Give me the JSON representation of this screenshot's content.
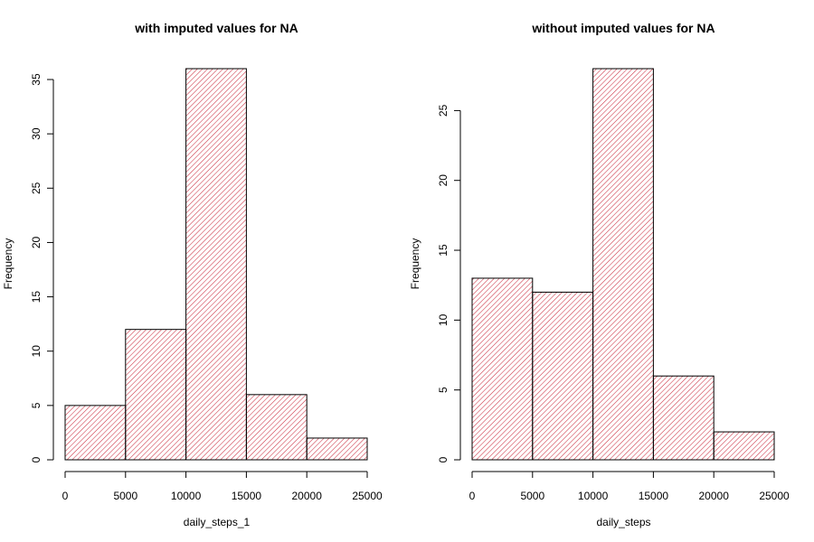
{
  "colors": {
    "hatch": "#cc3344",
    "outline": "#000000",
    "background": "#ffffff"
  },
  "chart_data": [
    {
      "type": "bar",
      "subtype": "histogram",
      "title": "with imputed values for NA",
      "xlabel": "daily_steps_1",
      "ylabel": "Frequency",
      "bins": [
        [
          0,
          5000
        ],
        [
          5000,
          10000
        ],
        [
          10000,
          15000
        ],
        [
          15000,
          20000
        ],
        [
          20000,
          25000
        ]
      ],
      "values": [
        5,
        12,
        36,
        6,
        2
      ],
      "xlim": [
        0,
        25000
      ],
      "ylim": [
        0,
        36
      ],
      "x_ticks": [
        0,
        5000,
        10000,
        15000,
        20000,
        25000
      ],
      "y_ticks": [
        0,
        5,
        10,
        15,
        20,
        25,
        30,
        35
      ],
      "fill": "diagonal-hatch",
      "grid": false,
      "legend": "none"
    },
    {
      "type": "bar",
      "subtype": "histogram",
      "title": "without imputed values for NA",
      "xlabel": "daily_steps",
      "ylabel": "Frequency",
      "bins": [
        [
          0,
          5000
        ],
        [
          5000,
          10000
        ],
        [
          10000,
          15000
        ],
        [
          15000,
          20000
        ],
        [
          20000,
          25000
        ]
      ],
      "values": [
        13,
        12,
        28,
        6,
        2
      ],
      "xlim": [
        0,
        25000
      ],
      "ylim": [
        0,
        28
      ],
      "x_ticks": [
        0,
        5000,
        10000,
        15000,
        20000,
        25000
      ],
      "y_ticks": [
        0,
        5,
        10,
        15,
        20,
        25
      ],
      "fill": "diagonal-hatch",
      "grid": false,
      "legend": "none"
    }
  ]
}
